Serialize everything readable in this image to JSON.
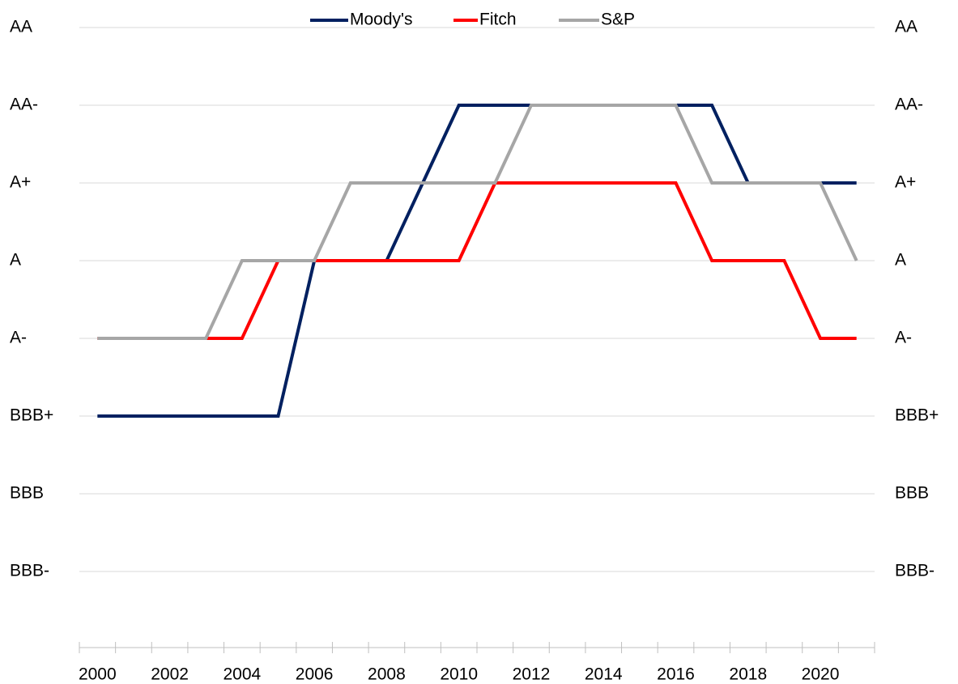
{
  "chart_data": {
    "type": "line",
    "categories": [
      "2000",
      null,
      "2002",
      null,
      "2004",
      null,
      "2006",
      null,
      "2008",
      null,
      "2010",
      null,
      "2012",
      null,
      "2014",
      null,
      "2016",
      null,
      "2018",
      null,
      "2020",
      null
    ],
    "series": [
      {
        "name": "Moody's",
        "color": "#002060",
        "values": [
          3,
          3,
          3,
          3,
          3,
          3,
          5,
          5,
          5,
          6,
          7,
          7,
          7,
          7,
          7,
          7,
          7,
          7,
          6,
          6,
          6,
          6
        ]
      },
      {
        "name": "Fitch",
        "color": "#ff0000",
        "values": [
          4,
          4,
          4,
          4,
          4,
          5,
          5,
          5,
          5,
          5,
          5,
          6,
          6,
          6,
          6,
          6,
          6,
          5,
          5,
          5,
          4,
          4
        ]
      },
      {
        "name": "S&P",
        "color": "#a6a6a6",
        "values": [
          4,
          4,
          4,
          4,
          5,
          5,
          5,
          6,
          6,
          6,
          6,
          6,
          7,
          7,
          7,
          7,
          7,
          6,
          6,
          6,
          6,
          5
        ]
      }
    ],
    "ylim": [
      0,
      8
    ],
    "yticks": [
      {
        "value": 1,
        "label": "BBB-"
      },
      {
        "value": 2,
        "label": "BBB"
      },
      {
        "value": 3,
        "label": "BBB+"
      },
      {
        "value": 4,
        "label": "A-"
      },
      {
        "value": 5,
        "label": "A"
      },
      {
        "value": 6,
        "label": "A+"
      },
      {
        "value": 7,
        "label": "AA-"
      },
      {
        "value": 8,
        "label": "AA"
      }
    ],
    "grid": true,
    "legend": "top"
  }
}
